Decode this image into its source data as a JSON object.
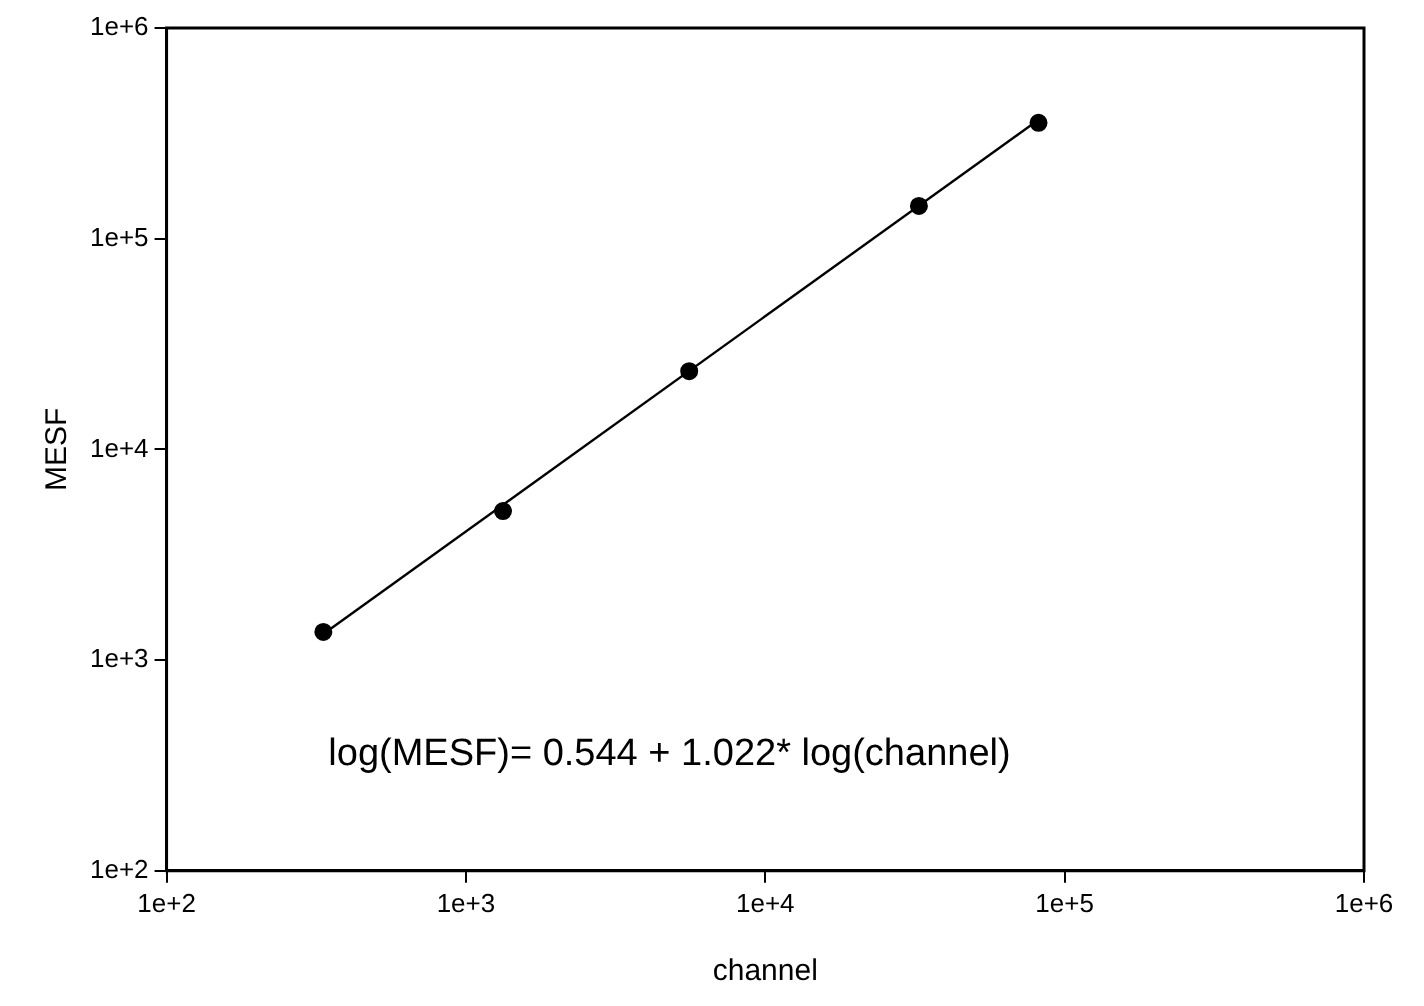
{
  "chart_data": {
    "type": "scatter",
    "xlabel": "channel",
    "ylabel": "MESF",
    "log": "xy",
    "grid": false,
    "legend": false,
    "marker": "circle",
    "xlim": [
      100,
      1000000
    ],
    "ylim": [
      100,
      1000000
    ],
    "xticks": [
      {
        "value": 100,
        "label": "1e+2"
      },
      {
        "value": 1000,
        "label": "1e+3"
      },
      {
        "value": 10000,
        "label": "1e+4"
      },
      {
        "value": 100000,
        "label": "1e+5"
      },
      {
        "value": 1000000,
        "label": "1e+6"
      }
    ],
    "yticks": [
      {
        "value": 100,
        "label": "1e+2"
      },
      {
        "value": 1000,
        "label": "1e+3"
      },
      {
        "value": 10000,
        "label": "1e+4"
      },
      {
        "value": 100000,
        "label": "1e+5"
      },
      {
        "value": 1000000,
        "label": "1e+6"
      }
    ],
    "series": [
      {
        "color": "#000000",
        "x": [
          334,
          1330,
          5570,
          32600,
          81800
        ],
        "values": [
          1360,
          5100,
          23500,
          143000,
          355000
        ]
      },
      {
        "type": "line",
        "color": "#000000",
        "marker": "none",
        "x": [
          334,
          81800
        ],
        "values": [
          1330,
          367000
        ]
      }
    ],
    "annotations": [
      "log(MESF)= 0.544 + 1.022* log(channel)"
    ]
  }
}
